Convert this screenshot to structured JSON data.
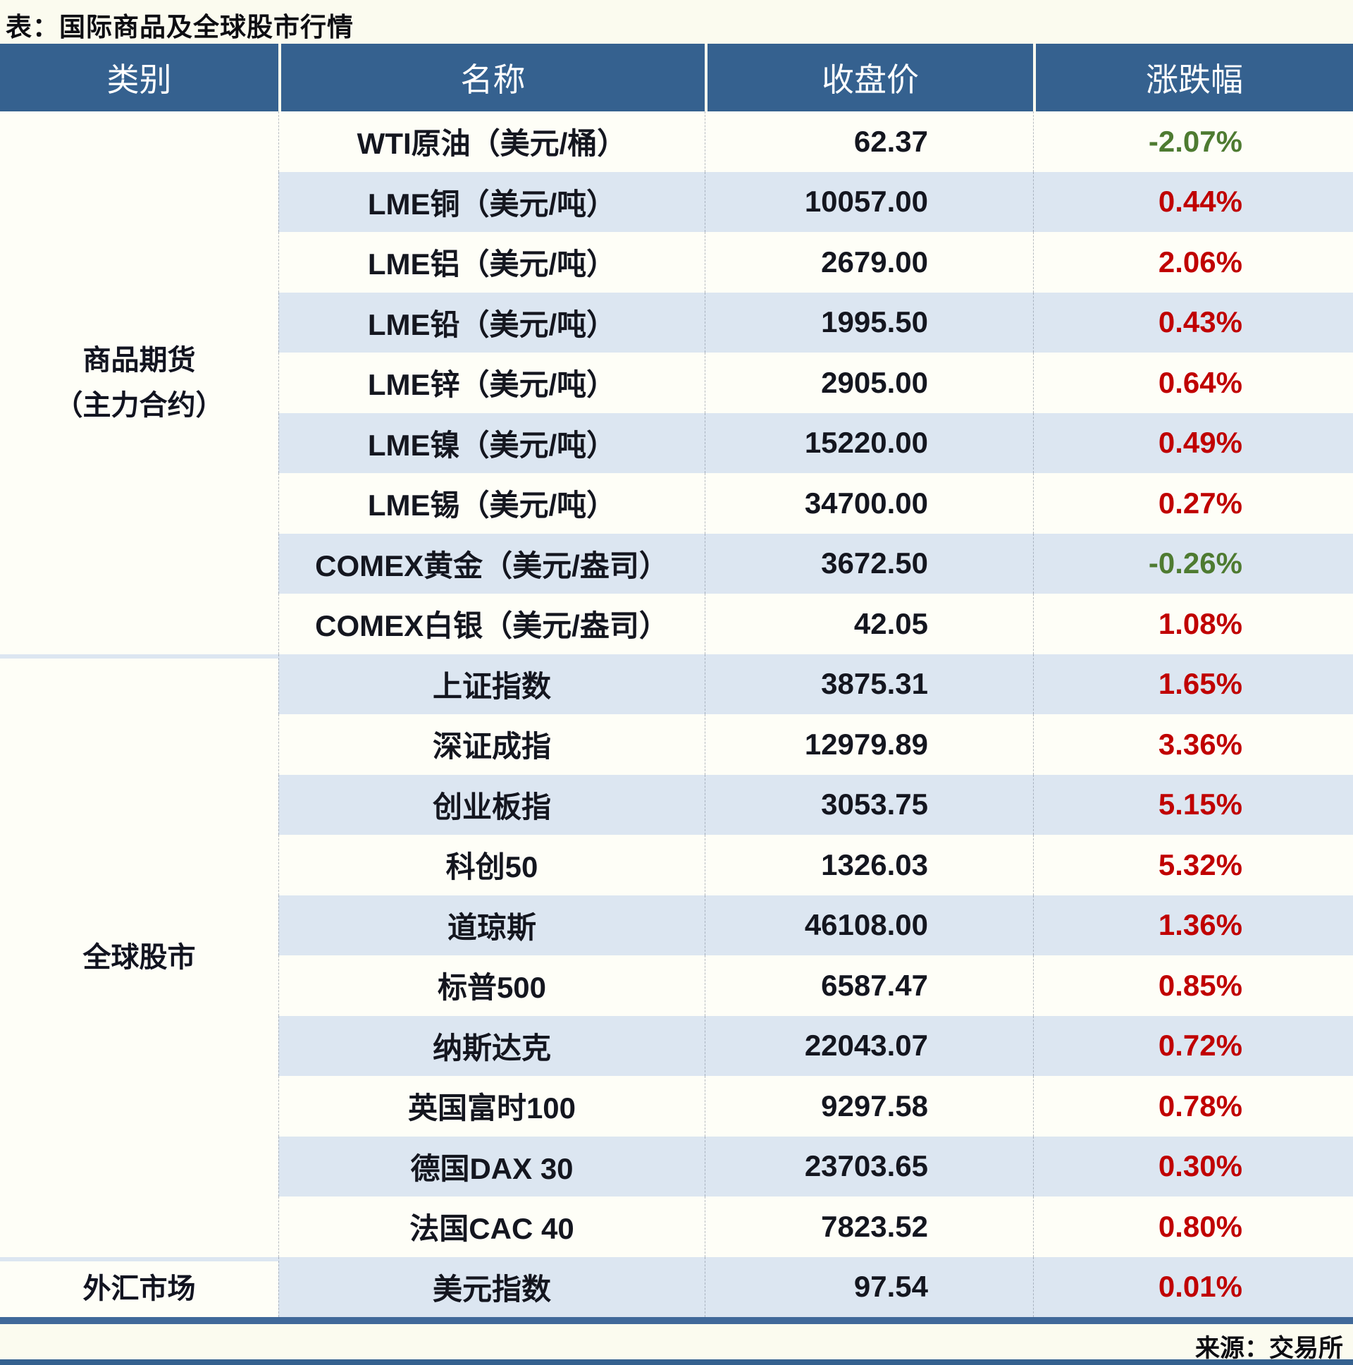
{
  "title": "表：国际商品及全球股市行情",
  "source": "来源：交易所",
  "colors": {
    "header_bg": "#35618F",
    "row_alt_bg": "#DCE6F1",
    "row_bg": "#FEFEF7",
    "up_red": "#C00000",
    "down_green": "#4E7B31",
    "bottom_line": "#40699A"
  },
  "table": {
    "headers": [
      "类别",
      "名称",
      "收盘价",
      "涨跌幅"
    ],
    "categories": [
      {
        "label": "商品期货（主力合约）",
        "line1": "商品期货",
        "line2": "（主力合约）",
        "row_count": 9
      },
      {
        "label": "全球股市",
        "line1": "全球股市",
        "line2": "",
        "row_count": 10
      },
      {
        "label": "外汇市场",
        "line1": "外汇市场",
        "line2": "",
        "row_count": 1
      }
    ],
    "rows": [
      {
        "name": "WTI原油（美元/桶）",
        "close": "62.37",
        "change": "-2.07%"
      },
      {
        "name": "LME铜（美元/吨）",
        "close": "10057.00",
        "change": "0.44%"
      },
      {
        "name": "LME铝（美元/吨）",
        "close": "2679.00",
        "change": "2.06%"
      },
      {
        "name": "LME铅（美元/吨）",
        "close": "1995.50",
        "change": "0.43%"
      },
      {
        "name": "LME锌（美元/吨）",
        "close": "2905.00",
        "change": "0.64%"
      },
      {
        "name": "LME镍（美元/吨）",
        "close": "15220.00",
        "change": "0.49%"
      },
      {
        "name": "LME锡（美元/吨）",
        "close": "34700.00",
        "change": "0.27%"
      },
      {
        "name": "COMEX黄金（美元/盎司）",
        "close": "3672.50",
        "change": "-0.26%"
      },
      {
        "name": "COMEX白银（美元/盎司）",
        "close": "42.05",
        "change": "1.08%"
      },
      {
        "name": "上证指数",
        "close": "3875.31",
        "change": "1.65%"
      },
      {
        "name": "深证成指",
        "close": "12979.89",
        "change": "3.36%"
      },
      {
        "name": "创业板指",
        "close": "3053.75",
        "change": "5.15%"
      },
      {
        "name": "科创50",
        "close": "1326.03",
        "change": "5.32%"
      },
      {
        "name": "道琼斯",
        "close": "46108.00",
        "change": "1.36%"
      },
      {
        "name": "标普500",
        "close": "6587.47",
        "change": "0.85%"
      },
      {
        "name": "纳斯达克",
        "close": "22043.07",
        "change": "0.72%"
      },
      {
        "name": "英国富时100",
        "close": "9297.58",
        "change": "0.78%"
      },
      {
        "name": "德国DAX 30",
        "close": "23703.65",
        "change": "0.30%"
      },
      {
        "name": "法国CAC 40",
        "close": "7823.52",
        "change": "0.80%"
      },
      {
        "name": "美元指数",
        "close": "97.54",
        "change": "0.01%"
      }
    ]
  }
}
